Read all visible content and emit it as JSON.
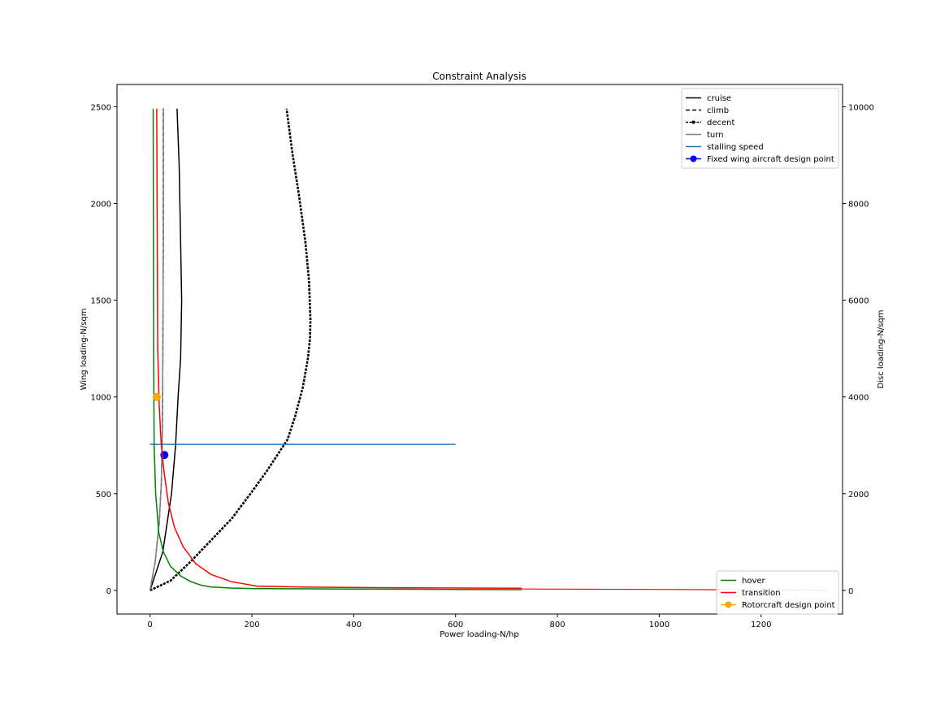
{
  "chart_data": {
    "type": "line",
    "title": "Constraint Analysis",
    "xlabel": "Power loading-N/hp",
    "ylabel": "Wing loading-N/sqm",
    "y2label": "Disc loading-N/sqm",
    "xlim": [
      -65,
      1360
    ],
    "ylim": [
      -122,
      2615
    ],
    "y2lim": [
      -488,
      10460
    ],
    "xticks": [
      0,
      200,
      400,
      600,
      800,
      1000,
      1200
    ],
    "yticks": [
      0,
      500,
      1000,
      1500,
      2000,
      2500
    ],
    "y2ticks": [
      0,
      2000,
      4000,
      6000,
      8000,
      10000
    ],
    "grid": false,
    "legend_placement": "top-right",
    "legend2_placement": "bottom-right",
    "series": [
      {
        "name": "cruise",
        "axis": "left",
        "color": "#000000",
        "style": "solid",
        "points": [
          [
            0,
            0
          ],
          [
            25,
            200
          ],
          [
            42,
            500
          ],
          [
            50,
            750
          ],
          [
            55,
            1000
          ],
          [
            60,
            1200
          ],
          [
            62,
            1500
          ],
          [
            60,
            1800
          ],
          [
            57,
            2200
          ],
          [
            53,
            2490
          ]
        ]
      },
      {
        "name": "climb",
        "axis": "left",
        "color": "#000000",
        "style": "dashed",
        "points": [
          [
            0,
            0
          ],
          [
            10,
            150
          ],
          [
            18,
            350
          ],
          [
            22,
            550
          ],
          [
            24,
            800
          ],
          [
            25,
            1200
          ],
          [
            26,
            1800
          ],
          [
            26,
            2490
          ]
        ]
      },
      {
        "name": "decent",
        "axis": "left",
        "color": "#000000",
        "style": "dashed-marker",
        "points": [
          [
            0,
            0
          ],
          [
            40,
            50
          ],
          [
            80,
            150
          ],
          [
            120,
            260
          ],
          [
            160,
            370
          ],
          [
            200,
            510
          ],
          [
            230,
            620
          ],
          [
            255,
            720
          ],
          [
            270,
            780
          ],
          [
            285,
            900
          ],
          [
            300,
            1050
          ],
          [
            310,
            1200
          ],
          [
            314,
            1300
          ],
          [
            315,
            1400
          ],
          [
            312,
            1600
          ],
          [
            305,
            1800
          ],
          [
            292,
            2050
          ],
          [
            280,
            2250
          ],
          [
            268,
            2490
          ]
        ]
      },
      {
        "name": "turn",
        "axis": "left",
        "color": "#808080",
        "style": "solid",
        "points": [
          [
            0,
            0
          ],
          [
            10,
            150
          ],
          [
            18,
            350
          ],
          [
            22,
            550
          ],
          [
            24,
            800
          ],
          [
            25,
            1200
          ],
          [
            26,
            1800
          ],
          [
            26,
            2490
          ]
        ]
      },
      {
        "name": "stalling speed",
        "axis": "left",
        "color": "#1f77b4",
        "style": "solid",
        "points": [
          [
            0,
            755
          ],
          [
            600,
            755
          ]
        ]
      },
      {
        "name": "Fixed wing aircraft design point",
        "axis": "left",
        "color": "#0000ff",
        "style": "marker-line",
        "points": [
          [
            28,
            700
          ]
        ]
      },
      {
        "name": "hover",
        "axis": "right",
        "color": "#008000",
        "style": "solid",
        "points": [
          [
            6,
            9960
          ],
          [
            7,
            5000
          ],
          [
            8,
            3000
          ],
          [
            11,
            2000
          ],
          [
            17,
            1200
          ],
          [
            26,
            800
          ],
          [
            40,
            500
          ],
          [
            60,
            300
          ],
          [
            80,
            180
          ],
          [
            100,
            110
          ],
          [
            120,
            70
          ],
          [
            160,
            50
          ],
          [
            200,
            40
          ],
          [
            400,
            30
          ],
          [
            730,
            15
          ]
        ]
      },
      {
        "name": "transition",
        "axis": "right",
        "color": "#ff0000",
        "style": "solid",
        "points": [
          [
            13,
            9960
          ],
          [
            15,
            5000
          ],
          [
            18,
            3800
          ],
          [
            22,
            3000
          ],
          [
            28,
            2400
          ],
          [
            36,
            1800
          ],
          [
            48,
            1300
          ],
          [
            65,
            900
          ],
          [
            90,
            550
          ],
          [
            120,
            330
          ],
          [
            160,
            180
          ],
          [
            210,
            90
          ],
          [
            300,
            70
          ],
          [
            500,
            55
          ],
          [
            730,
            45
          ]
        ]
      },
      {
        "name": "Rotorcraft design point",
        "axis": "left",
        "color": "#ffa500",
        "style": "marker-line",
        "points": [
          [
            13,
            1000
          ]
        ]
      }
    ],
    "extra_curves": [
      {
        "axis": "right",
        "color": "#ff0000",
        "points": [
          [
            730,
            30
          ],
          [
            1000,
            20
          ],
          [
            1330,
            0
          ]
        ]
      },
      {
        "axis": "right",
        "color": "#008000",
        "points": [
          [
            730,
            15
          ]
        ]
      }
    ]
  }
}
